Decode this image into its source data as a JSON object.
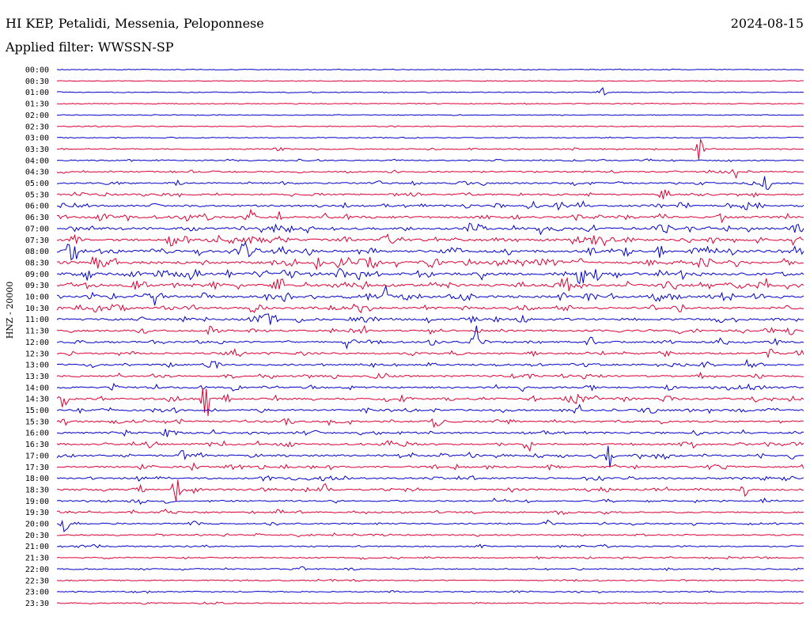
{
  "header": {
    "station": "HI KEP, Petalidi, Messenia, Peloponnese",
    "date": "2024-08-15",
    "filter": "Applied filter: WWSSN-SP"
  },
  "colors": {
    "trace_a": "#0000cc",
    "trace_b": "#dd0033"
  },
  "chart_data": {
    "type": "line",
    "title": "HI KEP, Petalidi, Messenia, Peloponnese",
    "ylabel": "HNZ - 20000",
    "xlabel": "",
    "row_labels": [
      "00:00",
      "00:30",
      "01:00",
      "01:30",
      "02:00",
      "02:30",
      "03:00",
      "03:30",
      "04:00",
      "04:30",
      "05:00",
      "05:30",
      "06:00",
      "06:30",
      "07:00",
      "07:30",
      "08:00",
      "08:30",
      "09:00",
      "09:30",
      "10:00",
      "10:30",
      "11:00",
      "11:30",
      "12:00",
      "12:30",
      "13:00",
      "13:30",
      "14:00",
      "14:30",
      "15:00",
      "15:30",
      "16:00",
      "16:30",
      "17:00",
      "17:30",
      "18:00",
      "18:30",
      "19:00",
      "19:30",
      "20:00",
      "20:30",
      "21:00",
      "21:30",
      "22:00",
      "22:30",
      "23:00",
      "23:30"
    ],
    "series": [
      {
        "color": "#0000cc",
        "rows": "even"
      },
      {
        "color": "#dd0033",
        "rows": "odd"
      }
    ],
    "activity_levels": [
      0.05,
      0.05,
      0.06,
      0.07,
      0.06,
      0.08,
      0.1,
      0.18,
      0.22,
      0.3,
      0.35,
      0.4,
      0.55,
      0.65,
      0.7,
      0.75,
      0.8,
      0.85,
      0.85,
      0.8,
      0.75,
      0.65,
      0.55,
      0.5,
      0.5,
      0.45,
      0.45,
      0.5,
      0.5,
      0.55,
      0.5,
      0.5,
      0.5,
      0.5,
      0.5,
      0.45,
      0.45,
      0.45,
      0.35,
      0.35,
      0.3,
      0.25,
      0.25,
      0.22,
      0.22,
      0.18,
      0.15,
      0.15
    ],
    "events": [
      {
        "row": 2,
        "x": 0.73,
        "amp": 0.9
      },
      {
        "row": 7,
        "x": 0.86,
        "amp": 1.1
      },
      {
        "row": 9,
        "x": 0.91,
        "amp": 0.6
      },
      {
        "row": 10,
        "x": 0.95,
        "amp": 1.6
      },
      {
        "row": 13,
        "x": 0.26,
        "amp": 0.9
      },
      {
        "row": 18,
        "x": 0.7,
        "amp": 1.1
      },
      {
        "row": 19,
        "x": 0.68,
        "amp": 1.5
      },
      {
        "row": 20,
        "x": 0.44,
        "amp": 1.0
      },
      {
        "row": 24,
        "x": 0.56,
        "amp": 1.6
      },
      {
        "row": 24,
        "x": 0.39,
        "amp": 0.6
      },
      {
        "row": 26,
        "x": 0.93,
        "amp": 1.0
      },
      {
        "row": 29,
        "x": 0.2,
        "amp": 2.0
      },
      {
        "row": 29,
        "x": 0.23,
        "amp": 1.2
      },
      {
        "row": 29,
        "x": 0.01,
        "amp": 0.7
      },
      {
        "row": 30,
        "x": 0.7,
        "amp": 0.7
      },
      {
        "row": 33,
        "x": 0.63,
        "amp": 1.5
      },
      {
        "row": 34,
        "x": 0.74,
        "amp": 1.2
      },
      {
        "row": 37,
        "x": 0.11,
        "amp": 1.0
      },
      {
        "row": 37,
        "x": 0.16,
        "amp": 1.3
      },
      {
        "row": 37,
        "x": 0.92,
        "amp": 0.7
      },
      {
        "row": 40,
        "x": 0.01,
        "amp": 0.8
      }
    ]
  }
}
